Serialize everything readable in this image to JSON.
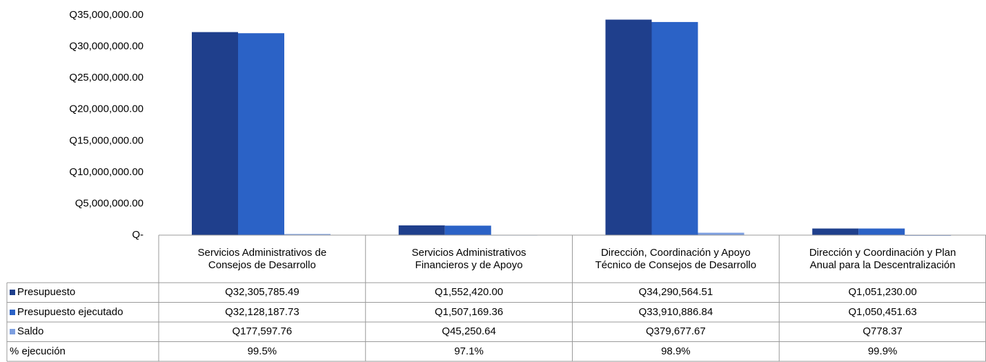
{
  "chart_data": {
    "type": "bar",
    "categories": [
      "Servicios Administrativos de Consejos de Desarrollo",
      "Servicios Administrativos Financieros y de Apoyo",
      "Dirección, Coordinación y Apoyo Técnico de Consejos de Desarrollo",
      "Dirección y Coordinación y Plan Anual para la Descentralización"
    ],
    "series": [
      {
        "name": "Presupuesto",
        "color": "#1f3f8c",
        "values": [
          32305785.49,
          1552420.0,
          34290564.51,
          1051230.0
        ],
        "value_labels": [
          "Q32,305,785.49",
          "Q1,552,420.00",
          "Q34,290,564.51",
          "Q1,051,230.00"
        ]
      },
      {
        "name": "Presupuesto ejecutado",
        "color": "#2b62c6",
        "values": [
          32128187.73,
          1507169.36,
          33910886.84,
          1050451.63
        ],
        "value_labels": [
          "Q32,128,187.73",
          "Q1,507,169.36",
          "Q33,910,886.84",
          "Q1,050,451.63"
        ]
      },
      {
        "name": "Saldo",
        "color": "#7d9fe0",
        "values": [
          177597.76,
          45250.64,
          379677.67,
          778.37
        ],
        "value_labels": [
          "Q177,597.76",
          "Q45,250.64",
          "Q379,677.67",
          "Q778.37"
        ]
      }
    ],
    "extra_row": {
      "name": "% ejecución",
      "values": [
        99.5,
        97.1,
        98.9,
        99.9
      ],
      "value_labels": [
        "99.5%",
        "97.1%",
        "98.9%",
        "99.9%"
      ]
    },
    "ylim": [
      0,
      35000000
    ],
    "yticks": [
      {
        "value": 0,
        "label": "Q-"
      },
      {
        "value": 5000000,
        "label": "Q5,000,000.00"
      },
      {
        "value": 10000000,
        "label": "Q10,000,000.00"
      },
      {
        "value": 15000000,
        "label": "Q15,000,000.00"
      },
      {
        "value": 20000000,
        "label": "Q20,000,000.00"
      },
      {
        "value": 25000000,
        "label": "Q25,000,000.00"
      },
      {
        "value": 30000000,
        "label": "Q30,000,000.00"
      },
      {
        "value": 35000000,
        "label": "Q35,000,000.00"
      }
    ]
  }
}
